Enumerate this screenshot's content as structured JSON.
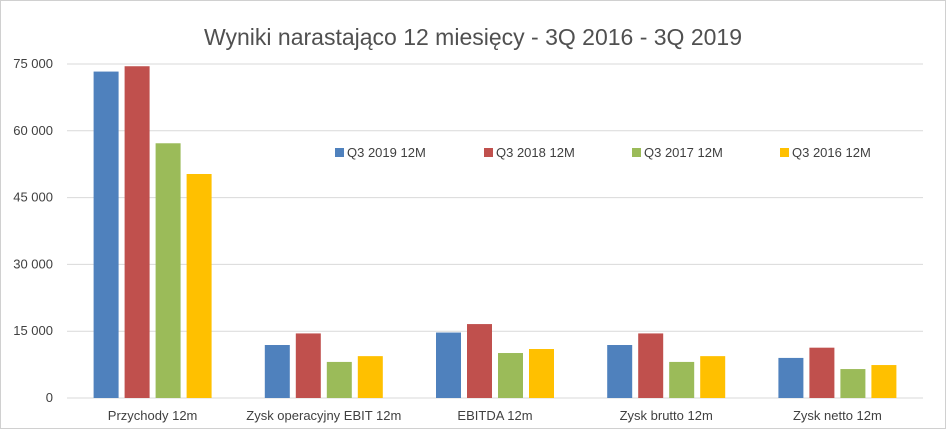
{
  "chart_data": {
    "type": "bar",
    "title": "Wyniki narastająco 12 miesięcy - 3Q 2016 - 3Q 2019",
    "xlabel": "",
    "ylabel": "",
    "ylim": [
      0,
      75000
    ],
    "yticks": [
      0,
      15000,
      30000,
      45000,
      60000,
      75000
    ],
    "ytick_labels": [
      "0",
      "15 000",
      "30 000",
      "45 000",
      "60 000",
      "75 000"
    ],
    "grid": true,
    "legend_position": "inside-right",
    "categories": [
      "Przychody 12m",
      "Zysk operacyjny EBIT 12m",
      "EBITDA 12m",
      "Zysk brutto 12m",
      "Zysk netto 12m"
    ],
    "series": [
      {
        "name": "Q3 2019 12M",
        "color": "#4f81bd",
        "values": [
          73300,
          11900,
          14700,
          11900,
          9000
        ]
      },
      {
        "name": "Q3 2018 12M",
        "color": "#c0504d",
        "values": [
          74500,
          14500,
          16600,
          14500,
          11300
        ]
      },
      {
        "name": "Q3 2017 12M",
        "color": "#9bbb59",
        "values": [
          57200,
          8100,
          10100,
          8100,
          6500
        ]
      },
      {
        "name": "Q3 2016 12M",
        "color": "#ffc000",
        "values": [
          50300,
          9400,
          11000,
          9400,
          7400
        ]
      }
    ]
  }
}
